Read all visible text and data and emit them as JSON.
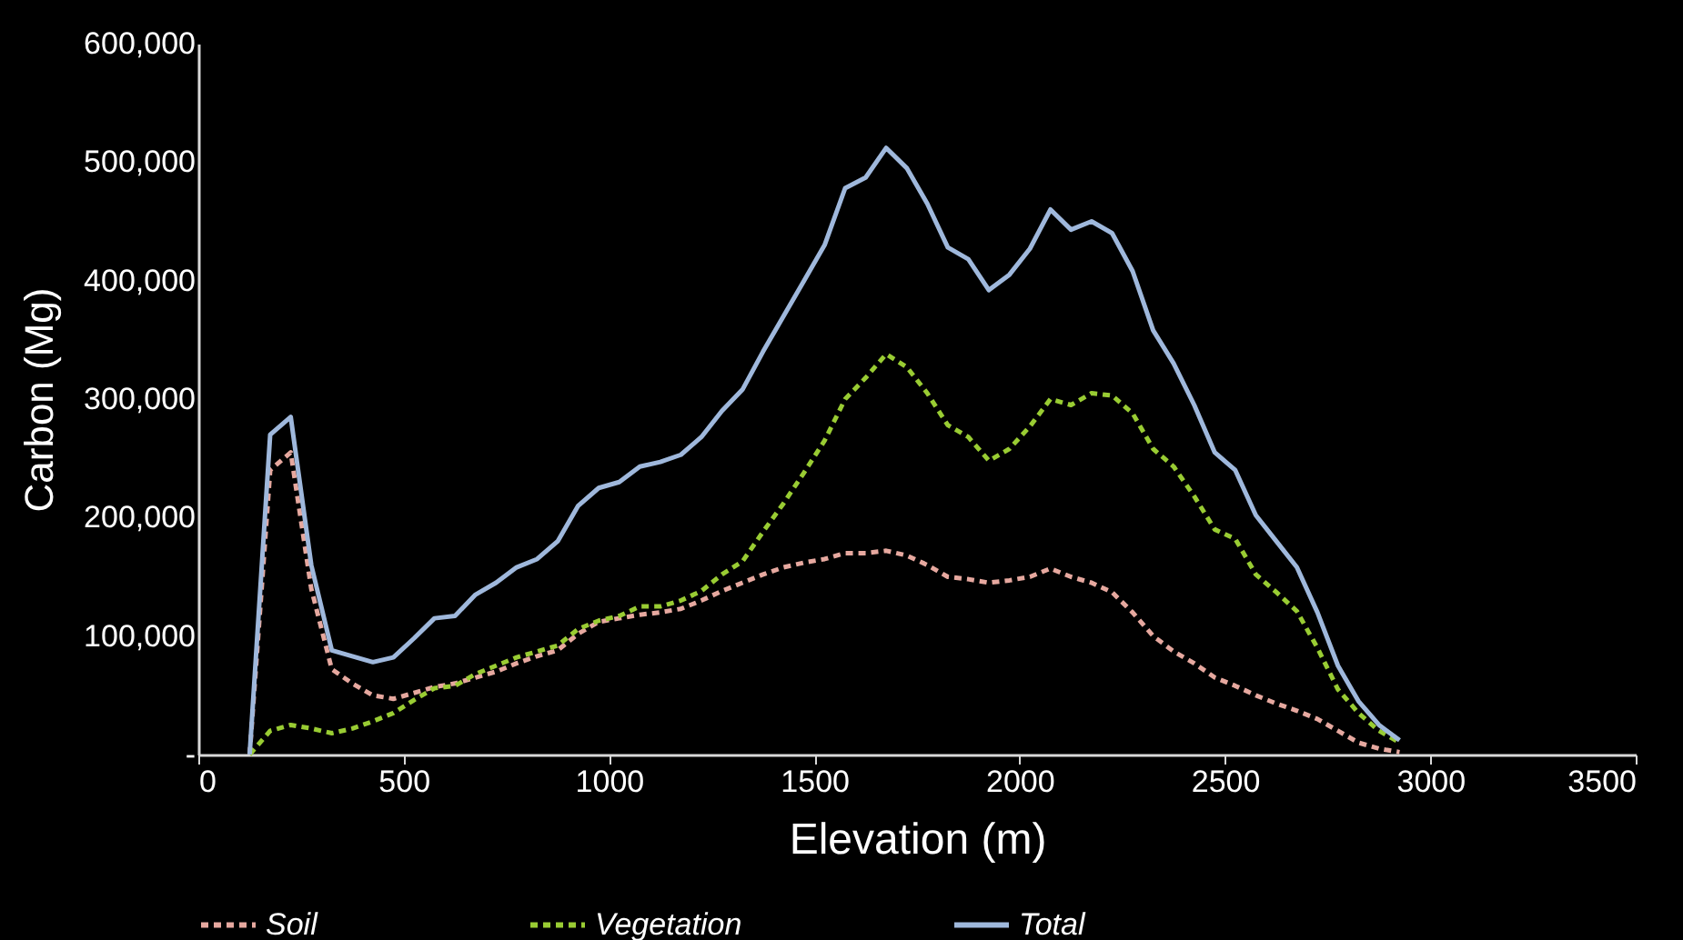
{
  "chart_data": {
    "type": "line",
    "xlabel": "Elevation  (m)",
    "ylabel": "Carbon (Mg)",
    "x": [
      125,
      175,
      225,
      275,
      325,
      375,
      425,
      475,
      525,
      575,
      625,
      675,
      725,
      775,
      825,
      875,
      925,
      975,
      1025,
      1075,
      1125,
      1175,
      1225,
      1275,
      1325,
      1375,
      1425,
      1475,
      1525,
      1575,
      1625,
      1675,
      1725,
      1775,
      1825,
      1875,
      1925,
      1975,
      2025,
      2075,
      2125,
      2175,
      2225,
      2275,
      2325,
      2375,
      2425,
      2475,
      2525,
      2575,
      2625,
      2675,
      2725,
      2775,
      2825,
      2875,
      2925
    ],
    "series": [
      {
        "name": "Soil",
        "color": "#e6a89f",
        "line_style": "dashed",
        "values": [
          0,
          240000,
          255000,
          140000,
          72000,
          60000,
          50000,
          47000,
          52000,
          57000,
          60000,
          65000,
          70000,
          77000,
          83000,
          88000,
          102000,
          112000,
          115000,
          118000,
          120000,
          123000,
          130000,
          138000,
          145000,
          152000,
          158000,
          162000,
          165000,
          170000,
          170000,
          172000,
          168000,
          160000,
          150000,
          148000,
          145000,
          147000,
          150000,
          157000,
          150000,
          145000,
          137000,
          120000,
          100000,
          87000,
          77000,
          65000,
          58000,
          50000,
          43000,
          37000,
          30000,
          20000,
          10000,
          5000,
          2000
        ]
      },
      {
        "name": "Vegetation",
        "color": "#99cc33",
        "line_style": "dashed",
        "values": [
          0,
          20000,
          25000,
          22000,
          18000,
          22000,
          28000,
          35000,
          46000,
          56000,
          58000,
          68000,
          75000,
          82000,
          87000,
          92000,
          106000,
          113000,
          117000,
          125000,
          125000,
          130000,
          138000,
          152000,
          163000,
          188000,
          212000,
          238000,
          265000,
          300000,
          318000,
          338000,
          327000,
          305000,
          278000,
          268000,
          248000,
          258000,
          277000,
          300000,
          295000,
          305000,
          303000,
          288000,
          258000,
          243000,
          218000,
          190000,
          182000,
          152000,
          137000,
          121000,
          90000,
          55000,
          35000,
          20000,
          10000
        ]
      },
      {
        "name": "Total",
        "color": "#9fb8dc",
        "line_style": "solid",
        "values": [
          0,
          270000,
          285000,
          160000,
          88000,
          83000,
          78000,
          82000,
          98000,
          115000,
          117000,
          135000,
          145000,
          158000,
          165000,
          180000,
          210000,
          225000,
          230000,
          243000,
          247000,
          253000,
          268000,
          290000,
          308000,
          340000,
          370000,
          400000,
          430000,
          478000,
          487000,
          512000,
          495000,
          465000,
          428000,
          418000,
          392000,
          405000,
          427000,
          460000,
          443000,
          450000,
          440000,
          408000,
          358000,
          330000,
          295000,
          255000,
          240000,
          202000,
          180000,
          158000,
          120000,
          75000,
          45000,
          25000,
          12000
        ]
      }
    ],
    "xlim": [
      0,
      3500
    ],
    "xticks": [
      0,
      500,
      1000,
      1500,
      2000,
      2500,
      3000,
      3500
    ],
    "ylim": [
      0,
      600000
    ],
    "yticks": [
      {
        "value": 0,
        "label": "-"
      },
      {
        "value": 100000,
        "label": "100,000"
      },
      {
        "value": 200000,
        "label": "200,000"
      },
      {
        "value": 300000,
        "label": "300,000"
      },
      {
        "value": 400000,
        "label": "400,000"
      },
      {
        "value": 500000,
        "label": "500,000"
      },
      {
        "value": 600000,
        "label": "600,000"
      }
    ],
    "grid": false,
    "legend": "bottom"
  }
}
